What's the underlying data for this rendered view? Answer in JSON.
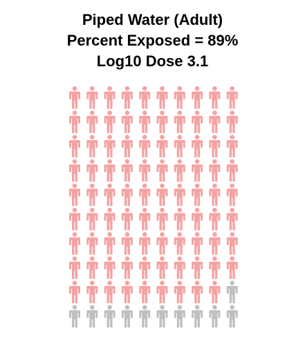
{
  "header": {
    "title": "Piped Water (Adult)",
    "subtitle_percent": "Percent Exposed = 89%",
    "subtitle_dose": "Log10 Dose 3.1"
  },
  "chart_data": {
    "type": "pictograph",
    "title": "Piped Water (Adult)",
    "total": 100,
    "rows": 10,
    "columns": 10,
    "exposed_count": 89,
    "unexposed_count": 11,
    "percent_exposed": 89,
    "log10_dose": 3.1,
    "icon": "person-icon",
    "colors": {
      "exposed": "#f4a3a3",
      "unexposed": "#bfbfbf"
    }
  }
}
